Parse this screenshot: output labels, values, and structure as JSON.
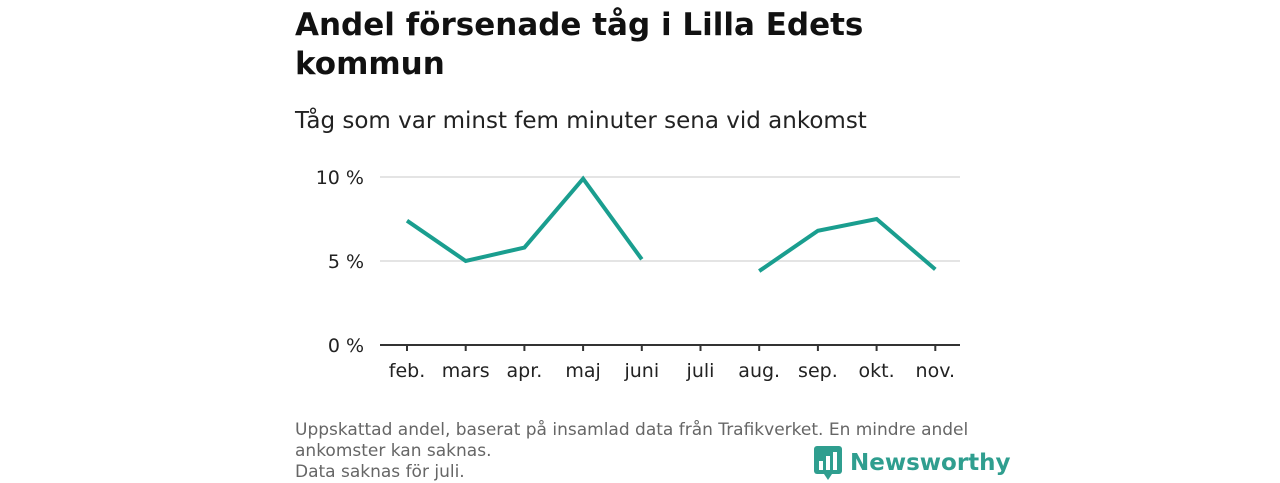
{
  "title": "Andel försenade tåg i Lilla Edets kommun",
  "subtitle": "Tåg som var minst fem minuter sena vid ankomst",
  "footer": {
    "line1": "Uppskattad andel, baserat på insamlad data från Trafikverket. En mindre andel ankomster kan saknas.",
    "line2": "Data saknas för juli."
  },
  "brand": {
    "name": "Newsworthy",
    "icon": "newsworthy-logo-icon"
  },
  "colors": {
    "line": "#1a9e8f",
    "grid": "#dcdcdc",
    "axis": "#333333",
    "brand": "#2f9e8f"
  },
  "chart_data": {
    "type": "line",
    "categories": [
      "feb.",
      "mars",
      "apr.",
      "maj",
      "juni",
      "juli",
      "aug.",
      "sep.",
      "okt.",
      "nov."
    ],
    "series": [
      {
        "values": [
          7.4,
          5.0,
          5.8,
          9.9,
          5.1,
          null,
          4.4,
          6.8,
          7.5,
          4.5
        ]
      }
    ],
    "yticks": [
      {
        "value": 0,
        "label": "0 %"
      },
      {
        "value": 5,
        "label": "5 %"
      },
      {
        "value": 10,
        "label": "10 %"
      }
    ],
    "ylim": [
      0,
      10
    ],
    "grid": true
  }
}
